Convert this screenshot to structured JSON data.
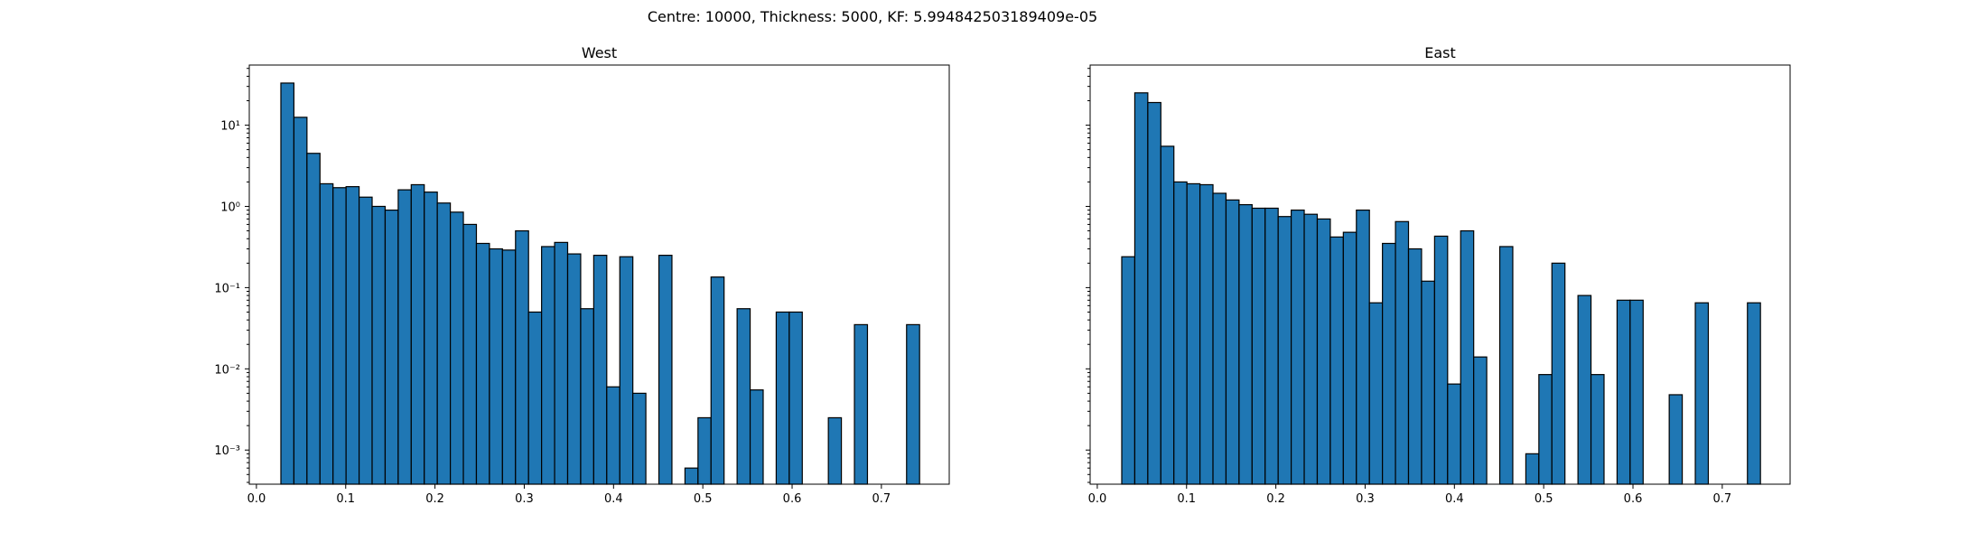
{
  "figure": {
    "suptitle": "Centre: 10000, Thickness: 5000, KF: 5.994842503189409e-05"
  },
  "chart_data": [
    {
      "type": "bar",
      "subtype": "histogram",
      "title": "West",
      "yscale": "log",
      "ylim": [
        0.00038,
        55
      ],
      "xlim": [
        -0.008,
        0.776
      ],
      "bar_width": 0.0146,
      "xticks": [
        0.0,
        0.1,
        0.2,
        0.3,
        0.4,
        0.5,
        0.6,
        0.7
      ],
      "xtick_labels": [
        "0.0",
        "0.1",
        "0.2",
        "0.3",
        "0.4",
        "0.5",
        "0.6",
        "0.7"
      ],
      "yticks": [
        0.001,
        0.01,
        0.1,
        1,
        10
      ],
      "ytick_labels": [
        "10⁻³",
        "10⁻²",
        "10⁻¹",
        "10⁰",
        "10¹"
      ],
      "bar_color": "#1f77b4",
      "edge_color": "#000000",
      "bins_left": [
        0.0274,
        0.042,
        0.0566,
        0.0712,
        0.0858,
        0.1004,
        0.115,
        0.1296,
        0.1442,
        0.1588,
        0.1734,
        0.188,
        0.2026,
        0.2172,
        0.2318,
        0.2464,
        0.261,
        0.2756,
        0.2902,
        0.3048,
        0.3194,
        0.334,
        0.3486,
        0.3632,
        0.3778,
        0.3924,
        0.407,
        0.4216,
        0.4362,
        0.4508,
        0.4654,
        0.48,
        0.4946,
        0.5092,
        0.5238,
        0.5384,
        0.553,
        0.5676,
        0.5822,
        0.5968,
        0.6114,
        0.626,
        0.6406,
        0.6552,
        0.6698,
        0.6844,
        0.699,
        0.7136,
        0.7282
      ],
      "values": [
        33,
        12.5,
        4.5,
        1.9,
        1.7,
        1.75,
        1.3,
        1.0,
        0.9,
        1.6,
        1.85,
        1.5,
        1.1,
        0.85,
        0.6,
        0.35,
        0.3,
        0.29,
        0.5,
        0.05,
        0.32,
        0.36,
        0.26,
        0.055,
        0.25,
        0.006,
        0.24,
        0.005,
        0,
        0.25,
        0,
        0.0006,
        0.0025,
        0.135,
        0,
        0.055,
        0.0055,
        0,
        0.05,
        0.05,
        0,
        0,
        0.0025,
        0,
        0.035,
        0,
        0,
        0,
        0.035
      ]
    },
    {
      "type": "bar",
      "subtype": "histogram",
      "title": "East",
      "yscale": "log",
      "ylim": [
        0.00038,
        55
      ],
      "xlim": [
        -0.008,
        0.776
      ],
      "bar_width": 0.0146,
      "xticks": [
        0.0,
        0.1,
        0.2,
        0.3,
        0.4,
        0.5,
        0.6,
        0.7
      ],
      "xtick_labels": [
        "0.0",
        "0.1",
        "0.2",
        "0.3",
        "0.4",
        "0.5",
        "0.6",
        "0.7"
      ],
      "yticks": [
        0.001,
        0.01,
        0.1,
        1,
        10
      ],
      "ytick_labels": [],
      "bar_color": "#1f77b4",
      "edge_color": "#000000",
      "bins_left": [
        0.0274,
        0.042,
        0.0566,
        0.0712,
        0.0858,
        0.1004,
        0.115,
        0.1296,
        0.1442,
        0.1588,
        0.1734,
        0.188,
        0.2026,
        0.2172,
        0.2318,
        0.2464,
        0.261,
        0.2756,
        0.2902,
        0.3048,
        0.3194,
        0.334,
        0.3486,
        0.3632,
        0.3778,
        0.3924,
        0.407,
        0.4216,
        0.4362,
        0.4508,
        0.4654,
        0.48,
        0.4946,
        0.5092,
        0.5238,
        0.5384,
        0.553,
        0.5676,
        0.5822,
        0.5968,
        0.6114,
        0.626,
        0.6406,
        0.6552,
        0.6698,
        0.6844,
        0.699,
        0.7136,
        0.7282
      ],
      "values": [
        0.24,
        25,
        19,
        5.5,
        2.0,
        1.9,
        1.85,
        1.45,
        1.2,
        1.05,
        0.95,
        0.95,
        0.75,
        0.9,
        0.8,
        0.7,
        0.42,
        0.48,
        0.9,
        0.065,
        0.35,
        0.65,
        0.3,
        0.12,
        0.43,
        0.0065,
        0.5,
        0.014,
        0,
        0.32,
        0,
        0.0009,
        0.0085,
        0.2,
        0,
        0.08,
        0.0085,
        0,
        0.07,
        0.07,
        0,
        0,
        0.0048,
        0,
        0.065,
        0,
        0,
        0,
        0.065
      ]
    }
  ]
}
